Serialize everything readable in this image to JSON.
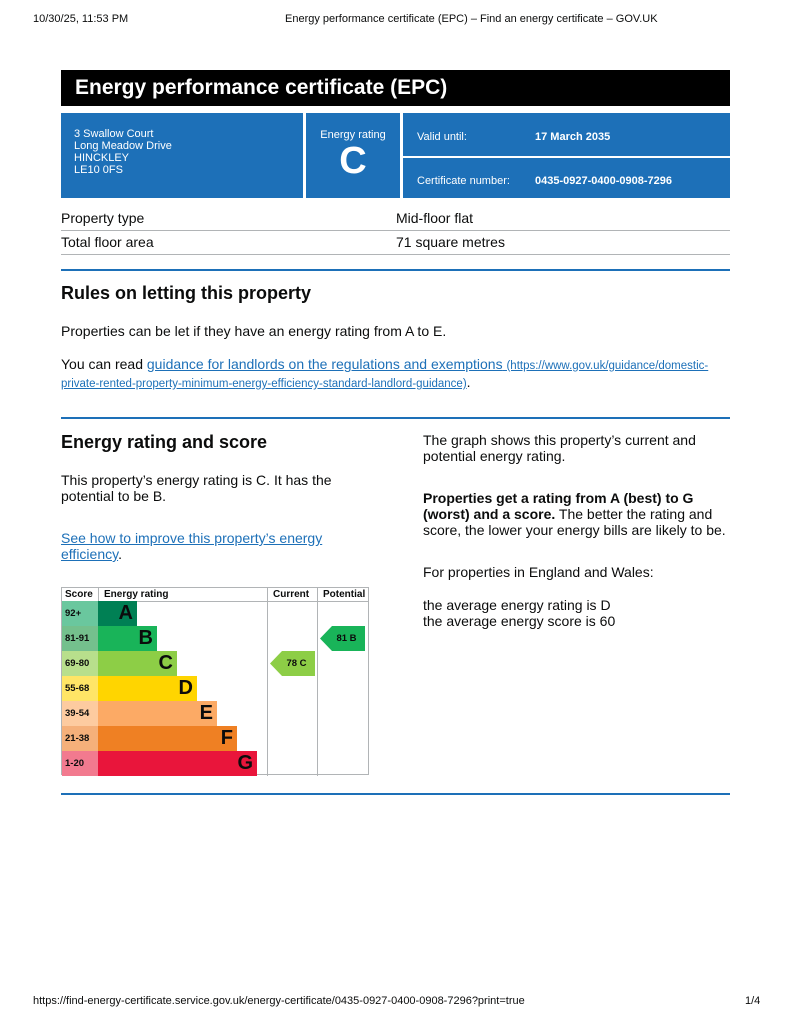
{
  "print_header": {
    "date": "10/30/25, 11:53 PM",
    "title": "Energy performance certificate (EPC) – Find an energy certificate – GOV.UK"
  },
  "print_footer": {
    "url": "https://find-energy-certificate.service.gov.uk/energy-certificate/0435-0927-0400-0908-7296?print=true",
    "page": "1/4"
  },
  "title": "Energy performance certificate (EPC)",
  "address": [
    "3 Swallow Court",
    "Long Meadow Drive",
    "HINCKLEY",
    "LE10 0FS"
  ],
  "rating_label": "Energy rating",
  "rating": "C",
  "valid_label": "Valid until:",
  "valid_value": "17 March 2035",
  "cert_label": "Certificate number:",
  "cert_value": "0435-0927-0400-0908-7296",
  "property": [
    {
      "label": "Property type",
      "value": "Mid-floor flat"
    },
    {
      "label": "Total floor area",
      "value": "71 square metres"
    }
  ],
  "rules": {
    "heading": "Rules on letting this property",
    "p1": "Properties can be let if they have an energy rating from A to E.",
    "p2_pre": "You can read ",
    "link": "guidance for landlords on the regulations and exemptions",
    "link_url": "(https://www.gov.uk/guidance/domestic-private-rented-property-minimum-energy-efficiency-standard-landlord-guidance)",
    "p2_post": "."
  },
  "score": {
    "heading": "Energy rating and score",
    "p1": "This property’s energy rating is C. It has the potential to be B.",
    "link": "See how to improve this property’s energy efficiency",
    "link_post": ".",
    "r1": "The graph shows this property’s current and potential energy rating.",
    "r2_bold": "Properties get a rating from A (best) to G (worst) and a score.",
    "r2": " The better the rating and score, the lower your energy bills are likely to be.",
    "r3": "For properties in England and Wales:",
    "r4": "the average energy rating is D",
    "r5": "the average energy score is 60"
  },
  "graph": {
    "headers": {
      "score": "Score",
      "rating": "Energy rating",
      "current": "Current",
      "potential": "Potential"
    },
    "bands": [
      {
        "score": "92+",
        "letter": "A",
        "color": "#008054",
        "scolor": "#6ac79e"
      },
      {
        "score": "81-91",
        "letter": "B",
        "color": "#19b459",
        "scolor": "#74c08d"
      },
      {
        "score": "69-80",
        "letter": "C",
        "color": "#8dce46",
        "scolor": "#b8df8c"
      },
      {
        "score": "55-68",
        "letter": "D",
        "color": "#ffd500",
        "scolor": "#ffe566"
      },
      {
        "score": "39-54",
        "letter": "E",
        "color": "#fcaa65",
        "scolor": "#fdcba0"
      },
      {
        "score": "21-38",
        "letter": "F",
        "color": "#ef8023",
        "scolor": "#f5b07a"
      },
      {
        "score": "1-20",
        "letter": "G",
        "color": "#e9153b",
        "scolor": "#f27a8f"
      }
    ],
    "current": {
      "score": 78,
      "letter": "C",
      "label": "78  C",
      "color": "#8dce46"
    },
    "potential": {
      "score": 81,
      "letter": "B",
      "label": "81  B",
      "color": "#19b459"
    }
  }
}
